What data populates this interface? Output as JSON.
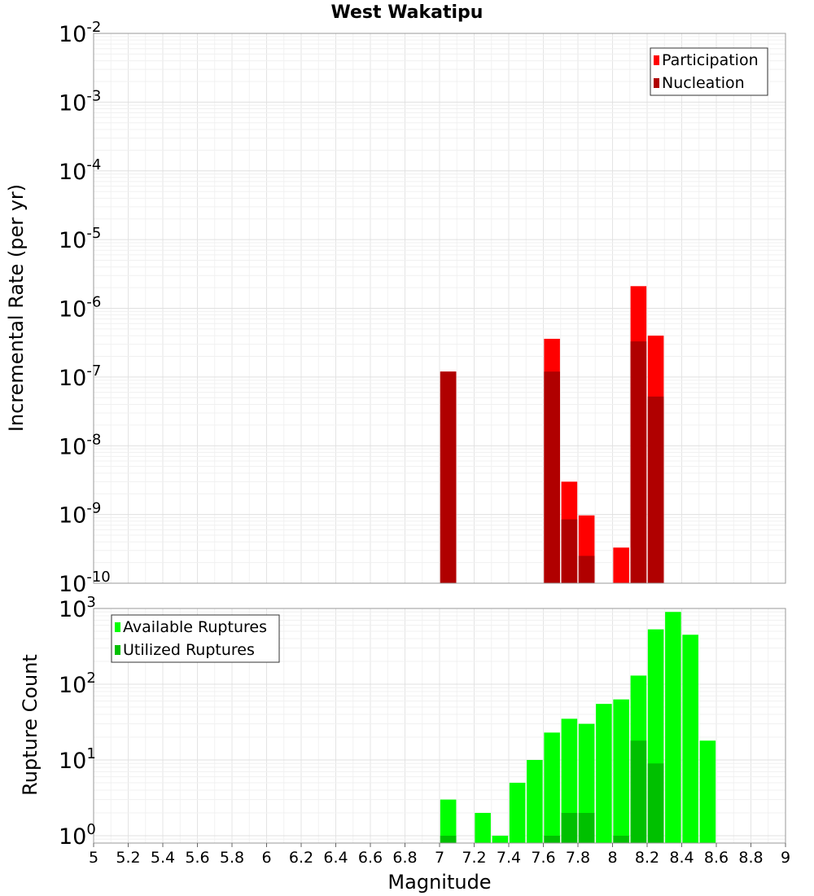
{
  "chart_data": [
    {
      "type": "bar",
      "title": "West Wakatipu",
      "ylabel": "Incremental Rate (per yr)",
      "xlabel": "",
      "yscale": "log",
      "ylim": [
        1e-10,
        0.01
      ],
      "xlim": [
        5,
        9
      ],
      "grid": true,
      "legend_position": "top-right",
      "series": [
        {
          "name": "Participation",
          "color": "#ff0000",
          "x": [
            7.05,
            7.65,
            7.75,
            7.85,
            8.05,
            8.15,
            8.25
          ],
          "values": [
            1.2e-07,
            3.6e-07,
            3e-09,
            9.7e-10,
            3.3e-10,
            2.1e-06,
            4e-07
          ]
        },
        {
          "name": "Nucleation",
          "color": "#b00000",
          "x": [
            7.05,
            7.65,
            7.75,
            7.85,
            8.15,
            8.25
          ],
          "values": [
            1.2e-07,
            1.2e-07,
            8.5e-10,
            2.5e-10,
            3.3e-07,
            5.2e-08
          ]
        }
      ],
      "yticks": [
        {
          "base": "10",
          "exp": "-2"
        },
        {
          "base": "10",
          "exp": "-3"
        },
        {
          "base": "10",
          "exp": "-4"
        },
        {
          "base": "10",
          "exp": "-5"
        },
        {
          "base": "10",
          "exp": "-6"
        },
        {
          "base": "10",
          "exp": "-7"
        },
        {
          "base": "10",
          "exp": "-8"
        },
        {
          "base": "10",
          "exp": "-9"
        },
        {
          "base": "10",
          "exp": "-10"
        }
      ]
    },
    {
      "type": "bar",
      "title": "",
      "ylabel": "Rupture Count",
      "xlabel": "Magnitude",
      "yscale": "log",
      "ylim": [
        0.8,
        1000
      ],
      "xlim": [
        5,
        9
      ],
      "grid": true,
      "legend_position": "top-left",
      "series": [
        {
          "name": "Available Ruptures",
          "color": "#00ff00",
          "x": [
            7.05,
            7.25,
            7.35,
            7.45,
            7.55,
            7.65,
            7.75,
            7.85,
            7.95,
            8.05,
            8.15,
            8.25,
            8.35,
            8.45,
            8.55
          ],
          "values": [
            3,
            2,
            1,
            5,
            10,
            23,
            35,
            30,
            55,
            63,
            130,
            530,
            900,
            450,
            18
          ]
        },
        {
          "name": "Utilized Ruptures",
          "color": "#00c000",
          "x": [
            7.05,
            7.65,
            7.75,
            7.85,
            8.05,
            8.15,
            8.25
          ],
          "values": [
            1,
            1,
            2,
            2,
            1,
            18,
            9
          ]
        }
      ],
      "yticks": [
        {
          "base": "10",
          "exp": "3"
        },
        {
          "base": "10",
          "exp": "2"
        },
        {
          "base": "10",
          "exp": "1"
        },
        {
          "base": "10",
          "exp": "0"
        }
      ],
      "xticks": [
        "5",
        "5.2",
        "5.4",
        "5.6",
        "5.8",
        "6",
        "6.2",
        "6.4",
        "6.6",
        "6.8",
        "7",
        "7.2",
        "7.4",
        "7.6",
        "7.8",
        "8",
        "8.2",
        "8.4",
        "8.6",
        "8.8",
        "9"
      ]
    }
  ]
}
